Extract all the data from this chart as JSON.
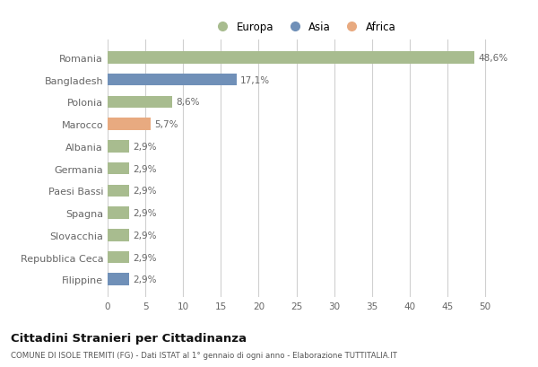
{
  "countries": [
    "Romania",
    "Bangladesh",
    "Polonia",
    "Marocco",
    "Albania",
    "Germania",
    "Paesi Bassi",
    "Spagna",
    "Slovacchia",
    "Repubblica Ceca",
    "Filippine"
  ],
  "values": [
    48.6,
    17.1,
    8.6,
    5.7,
    2.9,
    2.9,
    2.9,
    2.9,
    2.9,
    2.9,
    2.9
  ],
  "labels": [
    "48,6%",
    "17,1%",
    "8,6%",
    "5,7%",
    "2,9%",
    "2,9%",
    "2,9%",
    "2,9%",
    "2,9%",
    "2,9%",
    "2,9%"
  ],
  "continents": [
    "Europa",
    "Asia",
    "Europa",
    "Africa",
    "Europa",
    "Europa",
    "Europa",
    "Europa",
    "Europa",
    "Europa",
    "Asia"
  ],
  "colors": {
    "Europa": "#a8bc8f",
    "Asia": "#7090b8",
    "Africa": "#e8aa80"
  },
  "legend_labels": [
    "Europa",
    "Asia",
    "Africa"
  ],
  "xlim": [
    0,
    52
  ],
  "xticks": [
    0,
    5,
    10,
    15,
    20,
    25,
    30,
    35,
    40,
    45,
    50
  ],
  "title": "Cittadini Stranieri per Cittadinanza",
  "subtitle": "COMUNE DI ISOLE TREMITI (FG) - Dati ISTAT al 1° gennaio di ogni anno - Elaborazione TUTTITALIA.IT",
  "background_color": "#ffffff",
  "grid_color": "#d0d0d0",
  "bar_height": 0.55,
  "label_fontsize": 7.5,
  "ytick_fontsize": 8,
  "xtick_fontsize": 7.5
}
